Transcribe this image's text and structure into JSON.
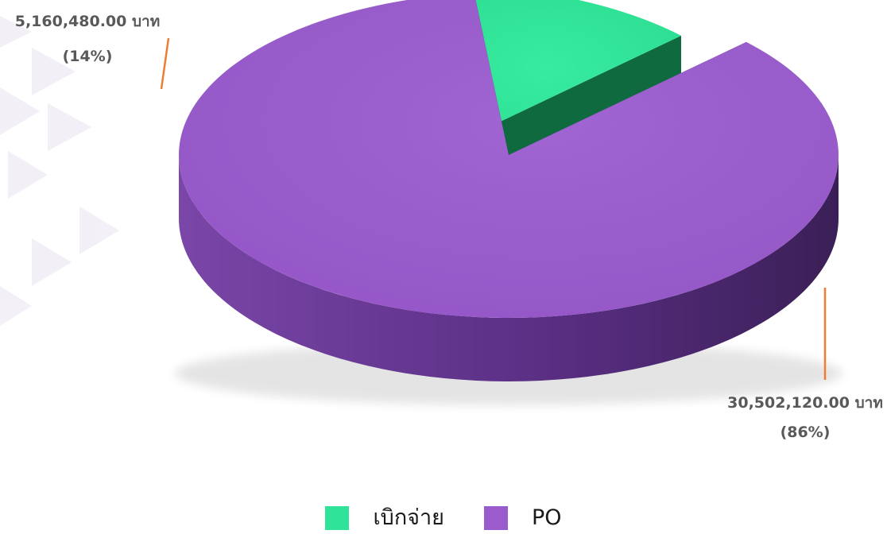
{
  "chart_data": {
    "type": "pie",
    "style": "3d-exploded",
    "slices": [
      {
        "name": "เบิกจ่าย",
        "value": 5160480.0,
        "label": "5,160,480.00 บาท",
        "percent_label": "(14%)",
        "color": "#2fe398"
      },
      {
        "name": "PO",
        "value": 30502120.0,
        "label": "30,502,120.00 บาท",
        "percent_label": "(86%)",
        "color": "#9a5ccc"
      }
    ],
    "legend_position": "bottom",
    "leader_line_color": "#ed7d31"
  }
}
